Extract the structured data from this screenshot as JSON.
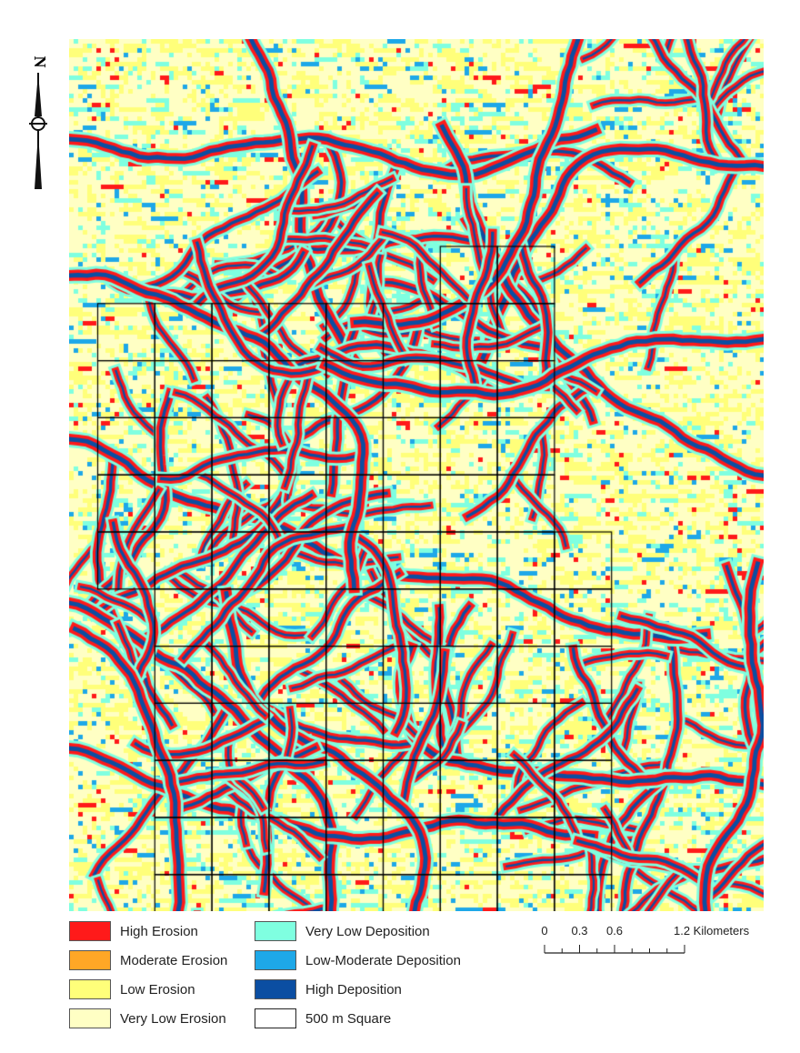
{
  "legend": {
    "items": [
      {
        "label": "High Erosion",
        "color": "#ff1a1a"
      },
      {
        "label": "Moderate Erosion",
        "color": "#ffa726"
      },
      {
        "label": "Low Erosion",
        "color": "#ffff7a"
      },
      {
        "label": "Very Low Erosion",
        "color": "#ffffc4"
      },
      {
        "label": "Very Low Deposition",
        "color": "#7fffe0"
      },
      {
        "label": "Low-Moderate Deposition",
        "color": "#1ea8e8"
      },
      {
        "label": "High Deposition",
        "color": "#0b4ea2"
      },
      {
        "label": "500 m Square",
        "color": "#ffffff"
      }
    ]
  },
  "scale": {
    "tick_labels": [
      "0",
      "0.3",
      "0.6",
      "1.2 Kilometers"
    ],
    "tick_values": [
      0,
      0.3,
      0.6,
      1.2
    ],
    "max": 1.2,
    "minor_step": 0.15
  },
  "north_arrow": {
    "letter": "N"
  },
  "map": {
    "background": "#ffffc4",
    "grid_rows": [
      {
        "start": 6.5,
        "end": 8.5,
        "y": 3
      },
      {
        "start": 0.5,
        "end": 8.5,
        "y": 4
      },
      {
        "start": 0.5,
        "end": 8.5,
        "y": 5
      },
      {
        "start": 0.5,
        "end": 8.5,
        "y": 6
      },
      {
        "start": 0.5,
        "end": 8.5,
        "y": 7
      },
      {
        "start": 0.5,
        "end": 9.5,
        "y": 8
      },
      {
        "start": 1.5,
        "end": 9.5,
        "y": 9
      },
      {
        "start": 1.5,
        "end": 9.5,
        "y": 10
      },
      {
        "start": 1.5,
        "end": 9.5,
        "y": 11
      },
      {
        "start": 1.5,
        "end": 9.5,
        "y": 12
      },
      {
        "start": 1.5,
        "end": 9.5,
        "y": 13
      },
      {
        "start": 1.5,
        "end": 9.5,
        "y": 14
      }
    ]
  }
}
